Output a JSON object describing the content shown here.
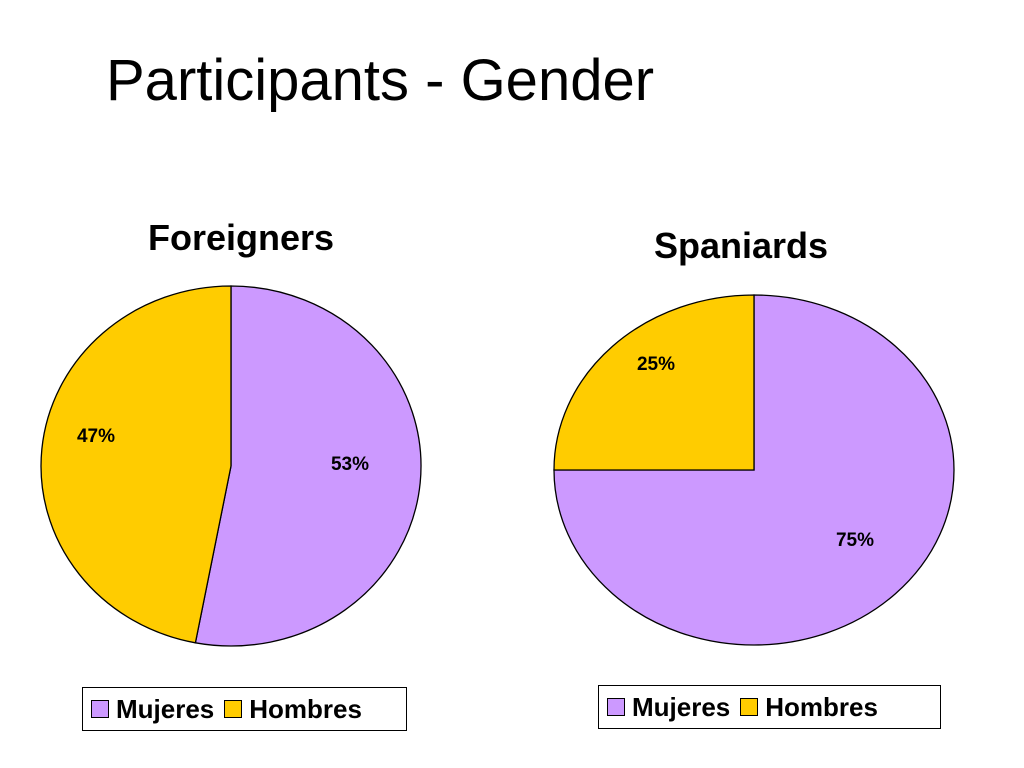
{
  "title": "Participants - Gender",
  "colors": {
    "mujeres": "#CC99FF",
    "hombres": "#FFCC00",
    "outline": "#000000"
  },
  "chart_data": [
    {
      "type": "pie",
      "title": "Foreigners",
      "slices": [
        {
          "name": "Mujeres",
          "value": 53,
          "label": "53%",
          "color": "#CC99FF"
        },
        {
          "name": "Hombres",
          "value": 47,
          "label": "47%",
          "color": "#FFCC00"
        }
      ],
      "legend": [
        "Mujeres",
        "Hombres"
      ],
      "legend_position": "bottom"
    },
    {
      "type": "pie",
      "title": "Spaniards",
      "slices": [
        {
          "name": "Mujeres",
          "value": 75,
          "label": "75%",
          "color": "#CC99FF"
        },
        {
          "name": "Hombres",
          "value": 25,
          "label": "25%",
          "color": "#FFCC00"
        }
      ],
      "legend": [
        "Mujeres",
        "Hombres"
      ],
      "legend_position": "bottom"
    }
  ]
}
